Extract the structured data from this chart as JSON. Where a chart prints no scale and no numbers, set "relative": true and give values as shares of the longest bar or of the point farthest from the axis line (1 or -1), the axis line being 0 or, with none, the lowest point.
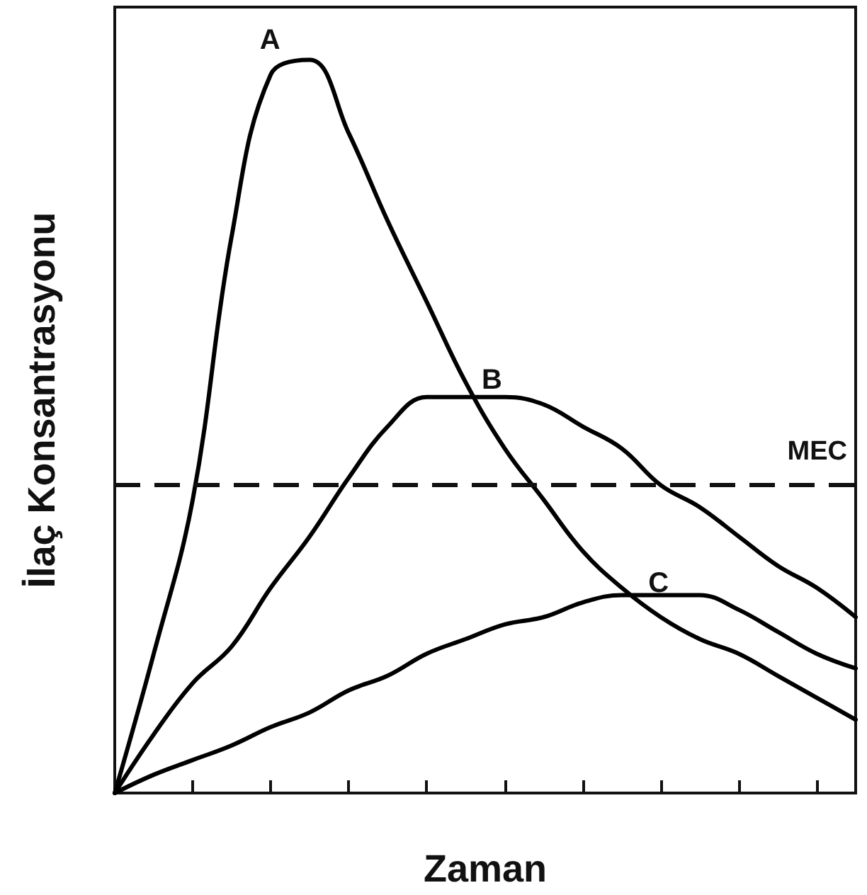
{
  "chart_data": {
    "type": "line",
    "xlabel": "Zaman",
    "ylabel": "İlaç Konsantrasyonu",
    "relative": true,
    "categories": [
      null,
      null,
      null,
      null,
      null,
      null,
      null,
      null,
      null,
      null,
      null,
      null,
      null,
      null,
      null,
      null,
      null,
      null,
      null,
      null
    ],
    "series": [
      {
        "name": "A",
        "color": "#000000",
        "values": [
          0,
          0.19,
          0.4,
          0.76,
          0.98,
          1.0,
          0.9,
          0.78,
          0.67,
          0.56,
          0.47,
          0.4,
          0.33,
          0.28,
          0.24,
          0.21,
          0.19,
          0.16,
          0.13,
          0.1
        ]
      },
      {
        "name": "B",
        "color": "#000000",
        "values": [
          0,
          0.08,
          0.15,
          0.2,
          0.28,
          0.35,
          0.43,
          0.5,
          0.54,
          0.54,
          0.54,
          0.53,
          0.5,
          0.47,
          0.42,
          0.39,
          0.35,
          0.31,
          0.28,
          0.24
        ]
      },
      {
        "name": "C",
        "color": "#000000",
        "values": [
          0,
          0.025,
          0.045,
          0.065,
          0.09,
          0.11,
          0.14,
          0.16,
          0.19,
          0.21,
          0.23,
          0.24,
          0.26,
          0.27,
          0.27,
          0.27,
          0.25,
          0.22,
          0.19,
          0.17
        ]
      }
    ],
    "ref_lines": [
      {
        "axis": "y",
        "value": 0.42,
        "label": "MEC",
        "line_style": "dashed"
      }
    ]
  }
}
